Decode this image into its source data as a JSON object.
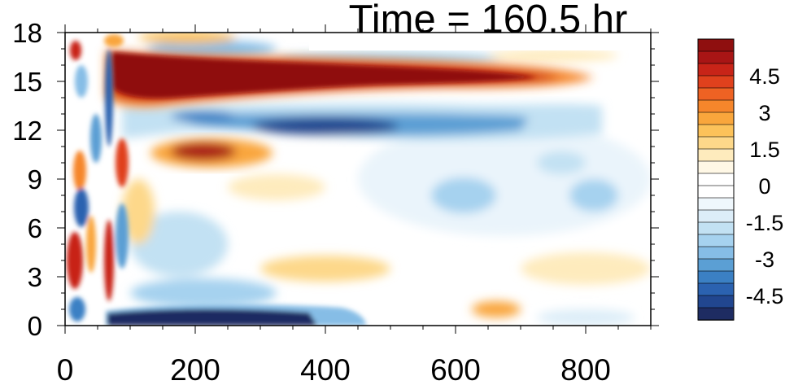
{
  "chart_data": {
    "type": "heatmap",
    "title": "Time = 160.5 hr",
    "xlabel": "",
    "ylabel": "",
    "xlim": [
      0,
      900
    ],
    "ylim": [
      0,
      18
    ],
    "xticks": [
      0,
      200,
      400,
      600,
      800
    ],
    "yticks": [
      0,
      3,
      6,
      9,
      12,
      15,
      18
    ],
    "colorbar": {
      "levels": [
        -6,
        -5.5,
        -5,
        -4.5,
        -4,
        -3.5,
        -3,
        -2.5,
        -2,
        -1.5,
        -1,
        -0.5,
        0,
        0.5,
        1,
        1.5,
        2,
        2.5,
        3,
        3.5,
        4,
        4.5,
        5,
        5.5,
        6
      ],
      "tick_labels": [
        "4.5",
        "3",
        "1.5",
        "0",
        "-1.5",
        "-3",
        "-4.5"
      ],
      "colors": [
        "#1e2c62",
        "#21468f",
        "#2b62b0",
        "#3b80c4",
        "#5b9fd4",
        "#86bde6",
        "#a6d2ef",
        "#c2e1f3",
        "#dcedf8",
        "#eff7fc",
        "#ffffff",
        "#ffffff",
        "#fff8e6",
        "#feebbd",
        "#fdd88a",
        "#fcc25a",
        "#f9a63c",
        "#f6862b",
        "#ee6223",
        "#e0411d",
        "#c82418",
        "#a81515",
        "#8f0f0f"
      ]
    },
    "features": [
      {
        "name": "upper warm band",
        "x": [
          70,
          720
        ],
        "y": [
          14,
          16.8
        ],
        "value": 6
      },
      {
        "name": "upper cold band",
        "x": [
          200,
          640
        ],
        "y": [
          11.5,
          13.5
        ],
        "value": -5
      },
      {
        "name": "mid warm blob",
        "x": [
          180,
          320
        ],
        "y": [
          9.5,
          11.5
        ],
        "value": 4
      },
      {
        "name": "surface cold band",
        "x": [
          70,
          450
        ],
        "y": [
          0,
          1.2
        ],
        "value": -5.5
      },
      {
        "name": "left wave train",
        "x": [
          0,
          140
        ],
        "y": [
          0,
          18
        ],
        "value": 5
      }
    ]
  }
}
